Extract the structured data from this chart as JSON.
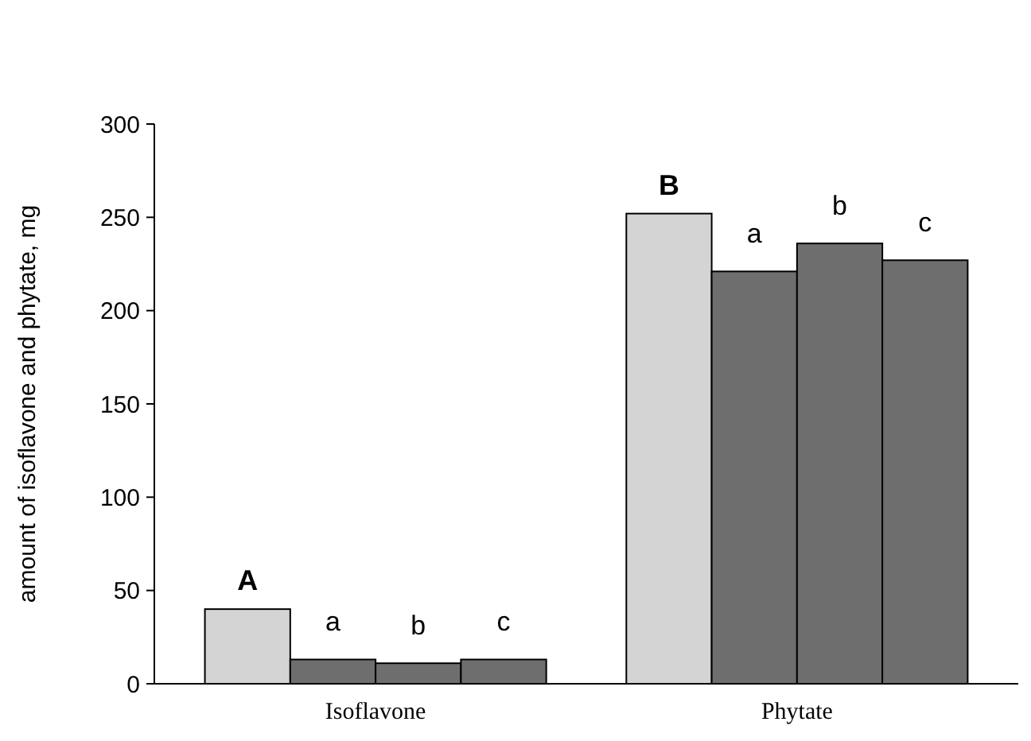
{
  "chart_data": {
    "type": "bar",
    "ylabel": "amount of isoflavone and phytate, mg",
    "categories": [
      "Isoflavone",
      "Phytate"
    ],
    "series": [
      {
        "color": "#d4d4d4",
        "values": [
          40,
          252
        ]
      },
      {
        "color": "#6e6e6e",
        "values": [
          13,
          221
        ]
      },
      {
        "color": "#6e6e6e",
        "values": [
          11,
          236
        ]
      },
      {
        "color": "#6e6e6e",
        "values": [
          13,
          227
        ]
      }
    ],
    "ylim": [
      0,
      300
    ],
    "yticks": [
      0,
      50,
      100,
      150,
      200,
      250,
      300
    ],
    "grid": false,
    "annotations": [
      "A",
      "a",
      "b",
      "c",
      "B",
      "a",
      "b",
      "c"
    ]
  }
}
